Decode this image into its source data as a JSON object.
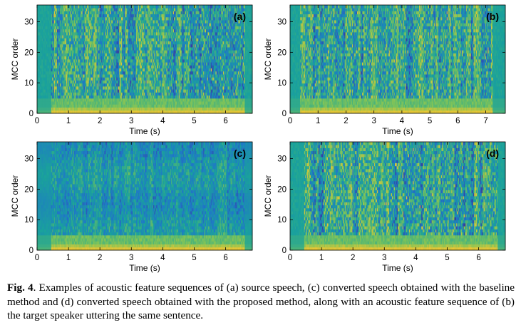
{
  "chart_data": [
    {
      "type": "heatmap",
      "panel_label": "(a)",
      "xlabel": "Time (s)",
      "ylabel": "MCC order",
      "xlim": [
        0,
        6.85
      ],
      "ylim": [
        0,
        35.5
      ],
      "xticks": [
        0,
        1,
        2,
        3,
        4,
        5,
        6
      ],
      "yticks": [
        0,
        10,
        20,
        30
      ],
      "colormap": [
        "#3e2b8f",
        "#1f78c8",
        "#1aa39a",
        "#7cc35a",
        "#f0c632"
      ],
      "silence_regions": [
        [
          0,
          0.45
        ],
        [
          6.6,
          6.85
        ]
      ]
    },
    {
      "type": "heatmap",
      "panel_label": "(b)",
      "xlabel": "Time (s)",
      "ylabel": "MCC order",
      "xlim": [
        0,
        7.7
      ],
      "ylim": [
        0,
        35.5
      ],
      "xticks": [
        0,
        1,
        2,
        3,
        4,
        5,
        6,
        7
      ],
      "yticks": [
        0,
        10,
        20,
        30
      ],
      "colormap": [
        "#3e2b8f",
        "#1f78c8",
        "#1aa39a",
        "#7cc35a",
        "#f0c632"
      ],
      "silence_regions": [
        [
          0,
          0.35
        ],
        [
          7.25,
          7.7
        ]
      ]
    },
    {
      "type": "heatmap",
      "panel_label": "(c)",
      "xlabel": "Time (s)",
      "ylabel": "MCC order",
      "xlim": [
        0,
        6.85
      ],
      "ylim": [
        0,
        35.5
      ],
      "xticks": [
        0,
        1,
        2,
        3,
        4,
        5,
        6
      ],
      "yticks": [
        0,
        10,
        20,
        30
      ],
      "colormap": [
        "#3e2b8f",
        "#1f78c8",
        "#1aa39a",
        "#7cc35a",
        "#f0c632"
      ],
      "silence_regions": [
        [
          0,
          0.45
        ],
        [
          6.6,
          6.85
        ]
      ]
    },
    {
      "type": "heatmap",
      "panel_label": "(d)",
      "xlabel": "Time (s)",
      "ylabel": "MCC order",
      "xlim": [
        0,
        6.85
      ],
      "ylim": [
        0,
        35.5
      ],
      "xticks": [
        0,
        1,
        2,
        3,
        4,
        5,
        6
      ],
      "yticks": [
        0,
        10,
        20,
        30
      ],
      "colormap": [
        "#3e2b8f",
        "#1f78c8",
        "#1aa39a",
        "#7cc35a",
        "#f0c632"
      ],
      "silence_regions": [
        [
          0,
          0.45
        ],
        [
          6.6,
          6.85
        ]
      ]
    }
  ],
  "caption": {
    "label": "Fig. 4",
    "text": ".  Examples of acoustic feature sequences of (a) source speech, (c) converted speech obtained with the baseline method and (d) converted speech obtained with the proposed method, along with an acoustic feature sequence of (b) the target speaker uttering the same sentence."
  }
}
